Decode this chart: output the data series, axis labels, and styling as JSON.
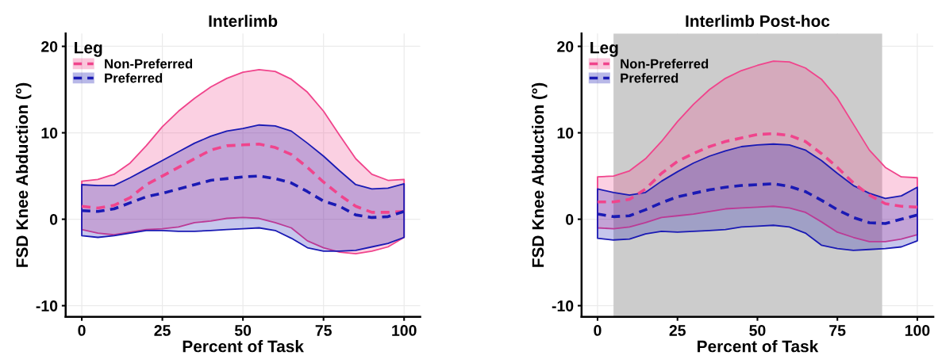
{
  "chart_data": [
    {
      "type": "line",
      "title": "Interlimb",
      "xlabel": "Percent of Task",
      "ylabel": "FSD Knee Abduction (°)",
      "legend_title": "Leg",
      "legend": "top left",
      "grid": true,
      "line_style": "dashed",
      "xlim": [
        -5,
        105
      ],
      "ylim": [
        -11.3,
        21.5
      ],
      "xticks": [
        0,
        25,
        50,
        75,
        100
      ],
      "yticks": [
        -10,
        0,
        10,
        20
      ],
      "x": [
        0,
        5,
        10,
        15,
        20,
        25,
        30,
        35,
        40,
        45,
        50,
        55,
        60,
        65,
        70,
        75,
        80,
        85,
        90,
        95,
        100
      ],
      "series": [
        {
          "name": "Non-Preferred",
          "color": "#f0448c",
          "values": [
            1.5,
            1.3,
            1.6,
            2.5,
            4,
            5,
            6,
            7,
            8,
            8.5,
            8.6,
            8.7,
            8.3,
            7.5,
            6,
            4.3,
            2.8,
            1.5,
            0.8,
            0.8,
            0.9
          ],
          "lower": [
            -1.2,
            -1.6,
            -1.8,
            -1.5,
            -1.2,
            -1.1,
            -0.9,
            -0.4,
            -0.2,
            0.1,
            0.2,
            0.1,
            -0.4,
            -1,
            -2.5,
            -3.3,
            -3.8,
            -4,
            -3.7,
            -3.2,
            -2.1
          ],
          "upper": [
            4.4,
            4.6,
            5.2,
            6.5,
            8.5,
            10.7,
            12.5,
            14,
            15.3,
            16.3,
            17,
            17.3,
            17.1,
            16.2,
            14.7,
            12.5,
            9.7,
            7,
            5.2,
            4.5,
            4.6
          ]
        },
        {
          "name": "Preferred",
          "color": "#1a1ab4",
          "values": [
            1,
            0.9,
            1.2,
            1.9,
            2.6,
            3,
            3.5,
            4,
            4.5,
            4.7,
            4.9,
            5,
            4.7,
            4.2,
            3.2,
            2.1,
            1.5,
            0.5,
            0.2,
            0.3,
            0.9
          ],
          "lower": [
            -1.9,
            -2.1,
            -1.9,
            -1.6,
            -1.3,
            -1.3,
            -1.4,
            -1.4,
            -1.3,
            -1.2,
            -1.1,
            -1,
            -1.3,
            -2.2,
            -3.3,
            -3.7,
            -3.7,
            -3.6,
            -3.2,
            -2.8,
            -2.1
          ],
          "upper": [
            4,
            3.9,
            3.9,
            4.8,
            5.8,
            6.8,
            7.8,
            8.8,
            9.6,
            10.2,
            10.5,
            10.9,
            10.8,
            10.2,
            8.8,
            7.3,
            5.6,
            4,
            3.5,
            3.6,
            4.1
          ]
        }
      ]
    },
    {
      "type": "line",
      "title": "Interlimb Post-hoc",
      "xlabel": "Percent of Task",
      "ylabel": "FSD Knee Abduction (°)",
      "legend_title": "Leg",
      "legend": "top left",
      "grid": true,
      "line_style": "dashed",
      "xlim": [
        -5,
        105
      ],
      "ylim": [
        -11.3,
        21.5
      ],
      "xticks": [
        0,
        25,
        50,
        75,
        100
      ],
      "yticks": [
        -10,
        0,
        10,
        20
      ],
      "bands": [
        {
          "axis": "x",
          "from": 5,
          "to": 89,
          "color": "#cccccc"
        }
      ],
      "x": [
        0,
        5,
        10,
        15,
        20,
        25,
        30,
        35,
        40,
        45,
        50,
        55,
        60,
        65,
        70,
        75,
        80,
        85,
        90,
        95,
        100
      ],
      "series": [
        {
          "name": "Non-Preferred",
          "color": "#f0448c",
          "values": [
            2,
            2,
            2.3,
            3.5,
            5.3,
            6.7,
            7.6,
            8.4,
            9,
            9.4,
            9.8,
            9.9,
            9.7,
            9,
            7.6,
            6,
            4.2,
            2.8,
            1.8,
            1.5,
            1.4
          ],
          "lower": [
            -1,
            -1.1,
            -0.9,
            -0.4,
            0.2,
            0.4,
            0.6,
            0.9,
            1.2,
            1.3,
            1.4,
            1.5,
            1.3,
            0.8,
            -0.3,
            -1.5,
            -2.1,
            -2.6,
            -2.6,
            -2.3,
            -1.8
          ],
          "upper": [
            4.9,
            5,
            5.6,
            7,
            9,
            11.3,
            13.3,
            15,
            16.3,
            17.2,
            17.8,
            18.3,
            18.2,
            17.5,
            16.2,
            14,
            11,
            8,
            6,
            4.9,
            4.8
          ]
        },
        {
          "name": "Preferred",
          "color": "#1a1ab4",
          "values": [
            0.6,
            0.3,
            0.4,
            1.1,
            1.9,
            2.6,
            3,
            3.4,
            3.7,
            3.9,
            4,
            4.1,
            3.8,
            3.2,
            2.2,
            1.1,
            0.2,
            -0.4,
            -0.5,
            0,
            0.5
          ],
          "lower": [
            -2.2,
            -2.4,
            -2.3,
            -1.7,
            -1.4,
            -1.5,
            -1.4,
            -1.3,
            -1.2,
            -0.9,
            -0.8,
            -0.7,
            -0.9,
            -1.6,
            -3,
            -3.4,
            -3.6,
            -3.5,
            -3.4,
            -3.2,
            -2.5
          ],
          "upper": [
            3.5,
            3.1,
            2.8,
            3.1,
            4.4,
            5.5,
            6.5,
            7.3,
            7.9,
            8.4,
            8.6,
            8.7,
            8.6,
            8,
            6.8,
            5.3,
            3.9,
            3,
            2.4,
            2.7,
            3.7
          ]
        }
      ]
    }
  ]
}
